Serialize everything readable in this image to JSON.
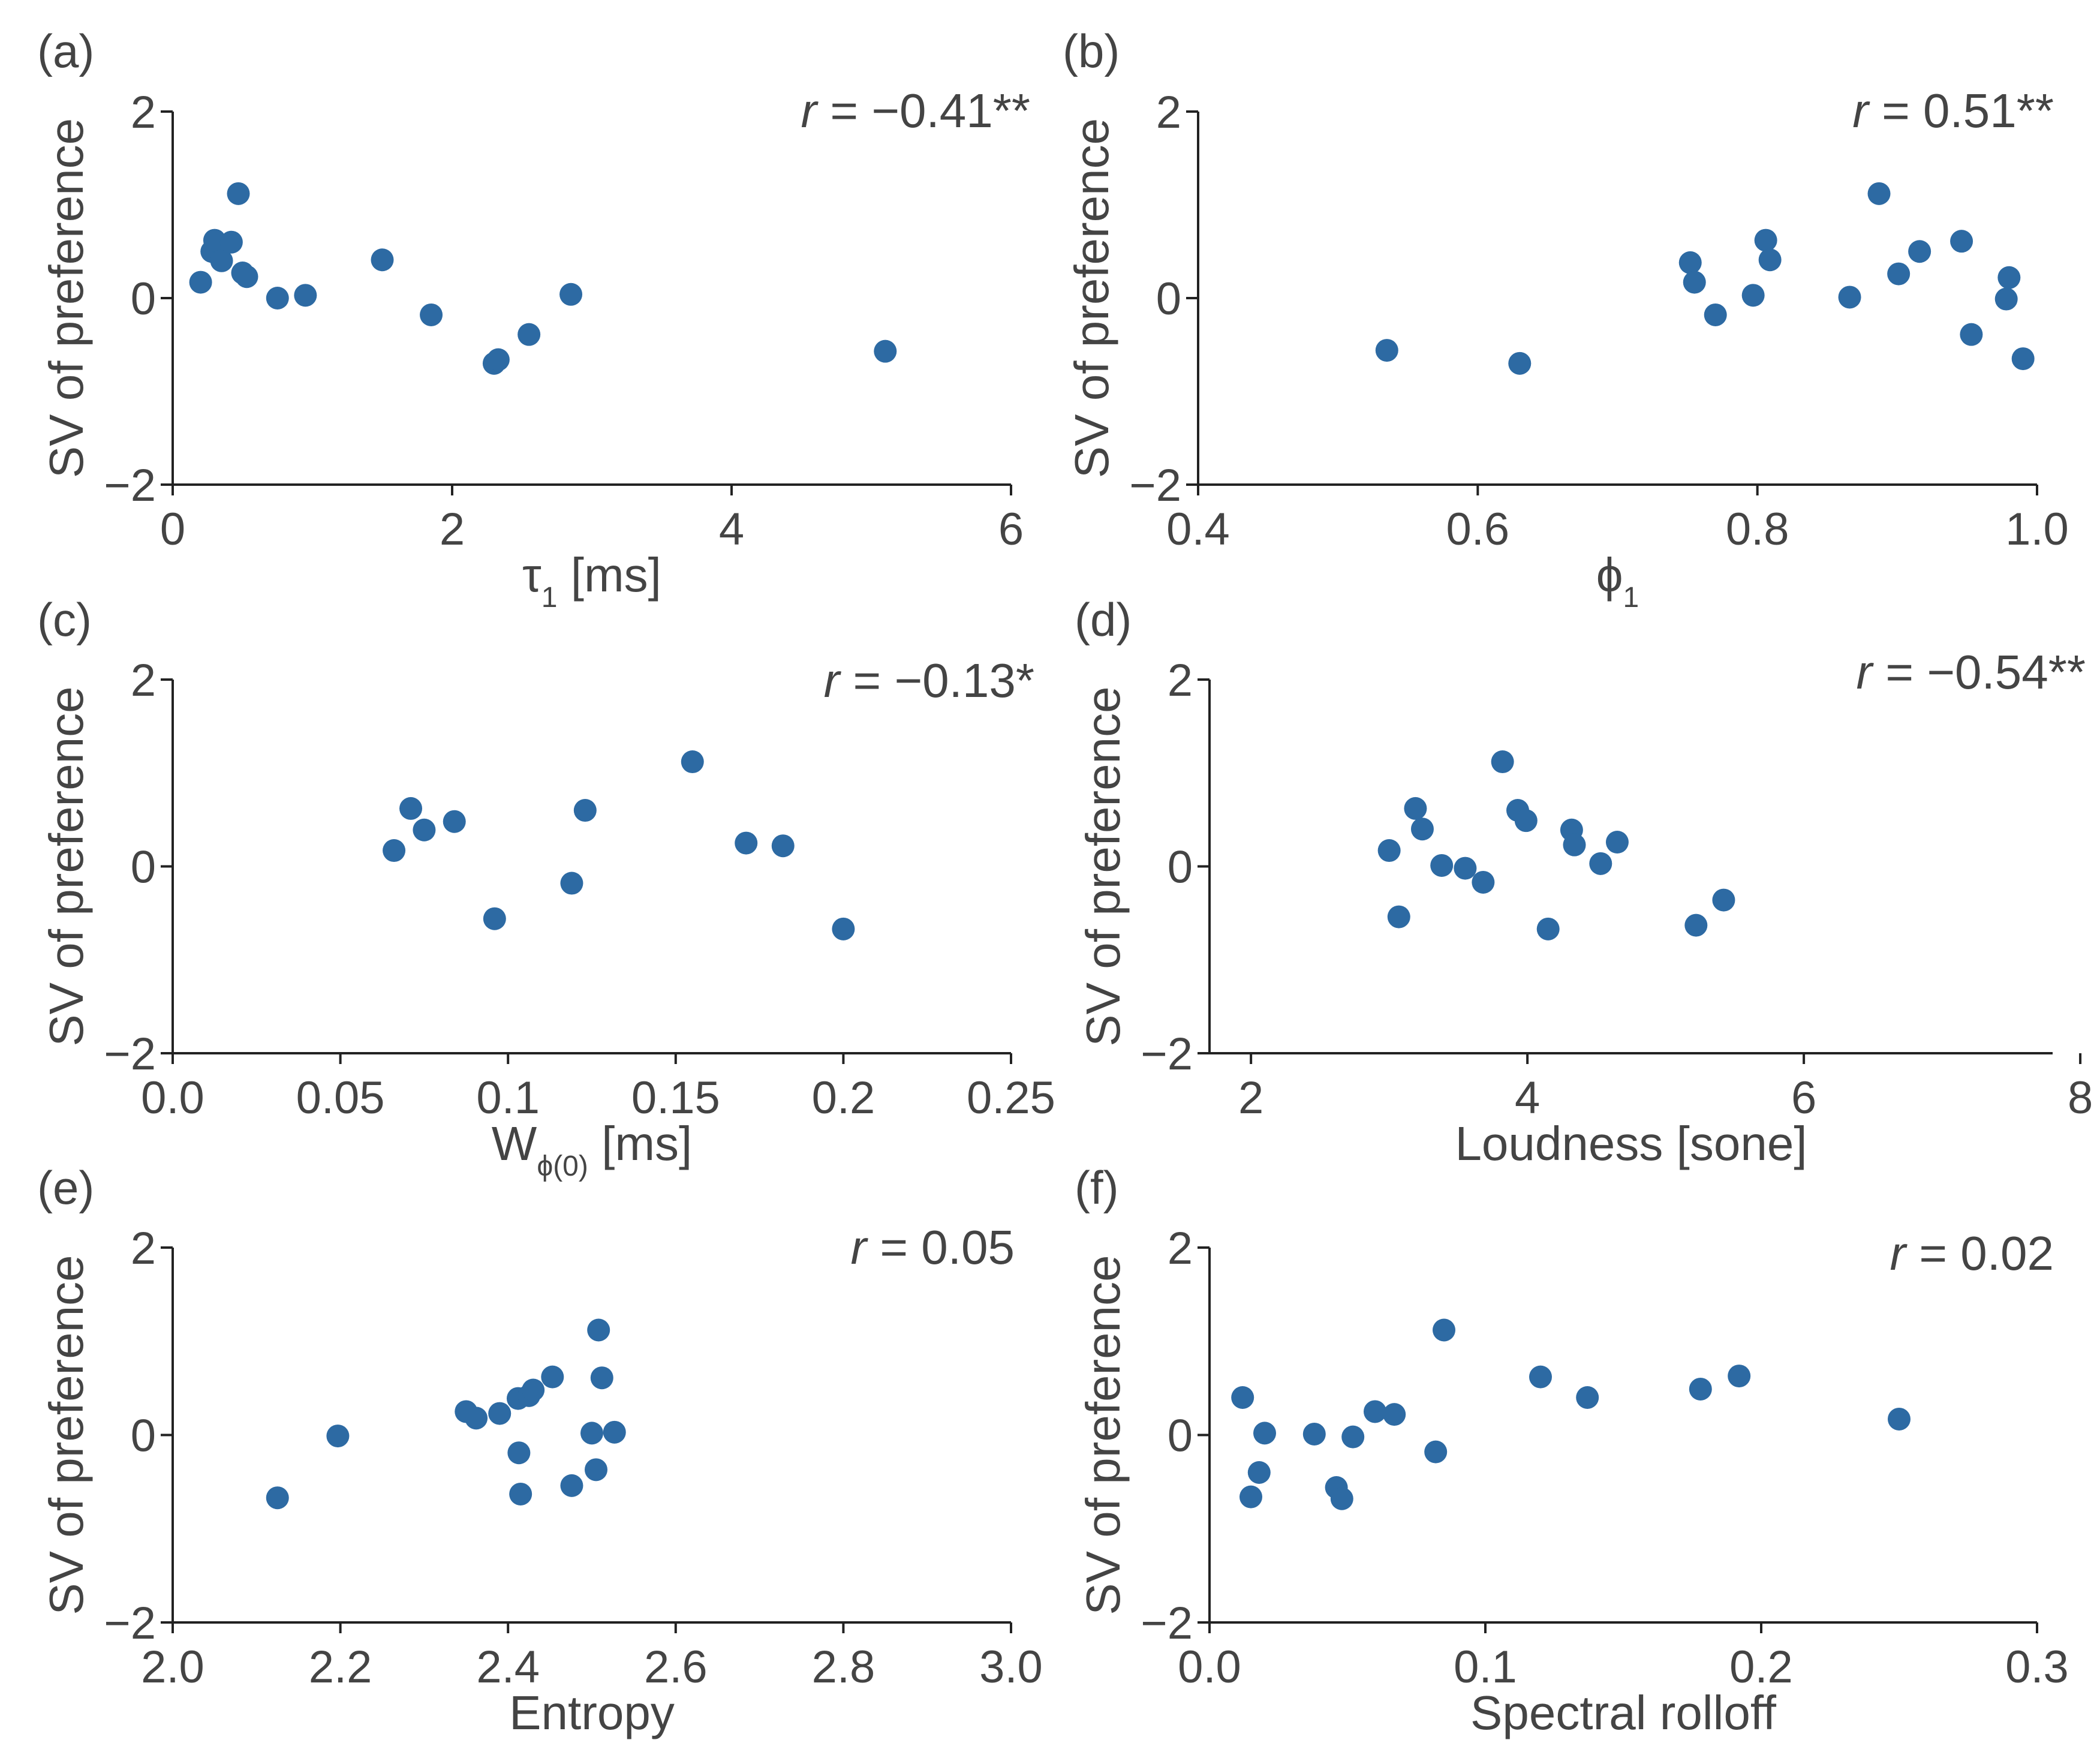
{
  "colors": {
    "marker": "#2d6aa3",
    "axis": "#222222",
    "text": "#444444"
  },
  "chart_data": [
    {
      "type": "scatter",
      "panel_label": "(a)",
      "xlabel": "τ",
      "xlabel_sub": "1",
      "xlabel_unit": " [ms]",
      "ylabel": "SV of preference",
      "xlim": [
        0,
        6
      ],
      "ylim": [
        -2,
        2
      ],
      "xticks": [
        "0",
        "2",
        "4",
        "6"
      ],
      "xtick_values": [
        0,
        2,
        4,
        6
      ],
      "yticks": [
        "−2",
        "0",
        "2"
      ],
      "ytick_values": [
        -2,
        0,
        2
      ],
      "r_label": "r",
      "r_value": " = −0.41**",
      "x": [
        0.2,
        0.28,
        0.3,
        0.35,
        0.42,
        0.47,
        0.5,
        0.53,
        0.75,
        0.95,
        1.5,
        1.85,
        2.3,
        2.33,
        2.55,
        2.85,
        5.1
      ],
      "y": [
        0.17,
        0.5,
        0.62,
        0.4,
        0.6,
        1.12,
        0.27,
        0.23,
        0.0,
        0.03,
        0.41,
        -0.18,
        -0.7,
        -0.66,
        -0.39,
        0.04,
        -0.57
      ]
    },
    {
      "type": "scatter",
      "panel_label": "(b)",
      "xlabel": "ϕ",
      "xlabel_sub": "1",
      "xlabel_unit": "",
      "ylabel": "SV of preference",
      "xlim": [
        0.4,
        1.0
      ],
      "ylim": [
        -2,
        2
      ],
      "xticks": [
        "0.4",
        "0.6",
        "0.8",
        "1.0"
      ],
      "xtick_values": [
        0.4,
        0.6,
        0.8,
        1.0
      ],
      "yticks": [
        "−2",
        "0",
        "2"
      ],
      "ytick_values": [
        -2,
        0,
        2
      ],
      "r_label": "r",
      "r_value": " = 0.51**",
      "x": [
        0.535,
        0.63,
        0.752,
        0.755,
        0.77,
        0.797,
        0.806,
        0.809,
        0.866,
        0.887,
        0.901,
        0.916,
        0.946,
        0.953,
        0.978,
        0.98,
        0.99
      ],
      "y": [
        -0.56,
        -0.7,
        0.38,
        0.17,
        -0.18,
        0.03,
        0.62,
        0.41,
        0.01,
        1.12,
        0.26,
        0.5,
        0.61,
        -0.39,
        -0.01,
        0.22,
        -0.65
      ]
    },
    {
      "type": "scatter",
      "panel_label": "(c)",
      "xlabel": "W",
      "xlabel_sub": "ϕ(0)",
      "xlabel_unit": " [ms]",
      "ylabel": "SV of preference",
      "xlim": [
        0.0,
        0.25
      ],
      "ylim": [
        -2,
        2
      ],
      "xticks": [
        "0.0",
        "0.05",
        "0.1",
        "0.15",
        "0.2",
        "0.25"
      ],
      "xtick_values": [
        0.0,
        0.05,
        0.1,
        0.15,
        0.2,
        0.25
      ],
      "yticks": [
        "−2",
        "0",
        "2"
      ],
      "ytick_values": [
        -2,
        0,
        2
      ],
      "r_label": "r",
      "r_value": " = −0.13*",
      "x": [
        0.066,
        0.071,
        0.075,
        0.084,
        0.096,
        0.119,
        0.123,
        0.155,
        0.171,
        0.182,
        0.2
      ],
      "y": [
        0.17,
        0.62,
        0.39,
        0.48,
        -0.56,
        -0.18,
        0.6,
        1.12,
        0.25,
        0.22,
        -0.67
      ]
    },
    {
      "type": "scatter",
      "panel_label": "(d)",
      "xlabel": "Loudness [sone]",
      "xlabel_sub": "",
      "xlabel_unit": "",
      "ylabel": "SV of preference",
      "xlim": [
        1.7,
        7.8
      ],
      "ylim": [
        -2,
        2
      ],
      "xticks": [
        "2",
        "4",
        "6",
        "8"
      ],
      "xtick_values": [
        2,
        4,
        6,
        8
      ],
      "yticks": [
        "−2",
        "0",
        "2"
      ],
      "ytick_values": [
        -2,
        0,
        2
      ],
      "r_label": "r",
      "r_value": " = −0.54**",
      "x": [
        3.0,
        3.07,
        3.19,
        3.24,
        3.38,
        3.55,
        3.68,
        3.82,
        3.93,
        3.99,
        4.15,
        4.32,
        4.34,
        4.53,
        4.65,
        5.22,
        5.42
      ],
      "y": [
        0.17,
        -0.54,
        0.62,
        0.4,
        0.01,
        -0.02,
        -0.17,
        1.12,
        0.6,
        0.49,
        -0.67,
        0.39,
        0.23,
        0.03,
        0.26,
        -0.63,
        -0.36
      ]
    },
    {
      "type": "scatter",
      "panel_label": "(e)",
      "xlabel": "Entropy",
      "xlabel_sub": "",
      "xlabel_unit": "",
      "ylabel": "SV of preference",
      "xlim": [
        2.0,
        3.0
      ],
      "ylim": [
        -2,
        2
      ],
      "xticks": [
        "2.0",
        "2.2",
        "2.4",
        "2.6",
        "2.8",
        "3.0"
      ],
      "xtick_values": [
        2.0,
        2.2,
        2.4,
        2.6,
        2.8,
        3.0
      ],
      "yticks": [
        "−2",
        "0",
        "2"
      ],
      "ytick_values": [
        -2,
        0,
        2
      ],
      "r_label": "r",
      "r_value": " =  0.05",
      "x": [
        2.125,
        2.197,
        2.35,
        2.362,
        2.39,
        2.412,
        2.413,
        2.415,
        2.425,
        2.43,
        2.453,
        2.476,
        2.5,
        2.505,
        2.508,
        2.512,
        2.527
      ],
      "y": [
        -0.67,
        -0.01,
        0.25,
        0.18,
        0.23,
        0.39,
        -0.19,
        -0.63,
        0.42,
        0.48,
        0.62,
        -0.54,
        0.02,
        -0.37,
        1.12,
        0.61,
        0.03
      ]
    },
    {
      "type": "scatter",
      "panel_label": "(f)",
      "xlabel": "Spectral rolloff",
      "xlabel_sub": "",
      "xlabel_unit": "",
      "ylabel": "SV of preference",
      "xlim": [
        0.0,
        0.3
      ],
      "ylim": [
        -2,
        2
      ],
      "xticks": [
        "0.0",
        "0.1",
        "0.2",
        "0.3"
      ],
      "xtick_values": [
        0.0,
        0.1,
        0.2,
        0.3
      ],
      "yticks": [
        "−2",
        "0",
        "2"
      ],
      "ytick_values": [
        -2,
        0,
        2
      ],
      "r_label": "r",
      "r_value": " = 0.02",
      "x": [
        0.012,
        0.015,
        0.018,
        0.02,
        0.038,
        0.046,
        0.048,
        0.052,
        0.06,
        0.067,
        0.082,
        0.085,
        0.12,
        0.137,
        0.178,
        0.192,
        0.25
      ],
      "y": [
        0.4,
        -0.66,
        -0.4,
        0.02,
        0.01,
        -0.56,
        -0.68,
        -0.02,
        0.25,
        0.22,
        -0.18,
        1.12,
        0.62,
        0.4,
        0.49,
        0.63,
        0.17
      ]
    }
  ]
}
